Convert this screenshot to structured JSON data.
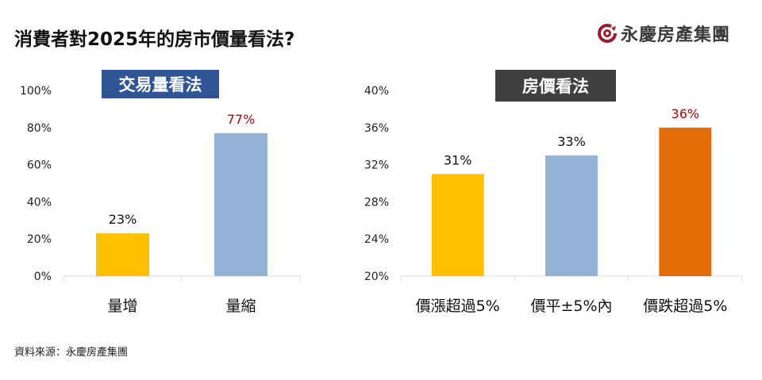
{
  "title": "消費者對2025年的房市價量看法?",
  "logo": {
    "text": "永慶房產集團",
    "color": "#9b1b30"
  },
  "source": "資料來源：永慶房產集團",
  "chart_data": [
    {
      "type": "bar",
      "title": "交易量看法",
      "title_bg": "#2f5597",
      "categories": [
        "量增",
        "量縮"
      ],
      "values": [
        23,
        77
      ],
      "labels": [
        "23%",
        "77%"
      ],
      "colors": [
        "#ffc000",
        "#95b3d7"
      ],
      "label_colors": [
        "#111111",
        "#c00000"
      ],
      "ylim": [
        0,
        100
      ],
      "yticks": [
        "0%",
        "20%",
        "40%",
        "60%",
        "80%",
        "100%"
      ],
      "grid": false
    },
    {
      "type": "bar",
      "title": "房價看法",
      "title_bg": "#404040",
      "categories": [
        "價漲超過5%",
        "價平±5%內",
        "價跌超過5%"
      ],
      "values": [
        31,
        33,
        36
      ],
      "labels": [
        "31%",
        "33%",
        "36%"
      ],
      "colors": [
        "#ffc000",
        "#95b3d7",
        "#e36c09"
      ],
      "label_colors": [
        "#111111",
        "#111111",
        "#c00000"
      ],
      "ylim": [
        20,
        40
      ],
      "yticks": [
        "20%",
        "24%",
        "28%",
        "32%",
        "36%",
        "40%"
      ],
      "grid": false
    }
  ]
}
